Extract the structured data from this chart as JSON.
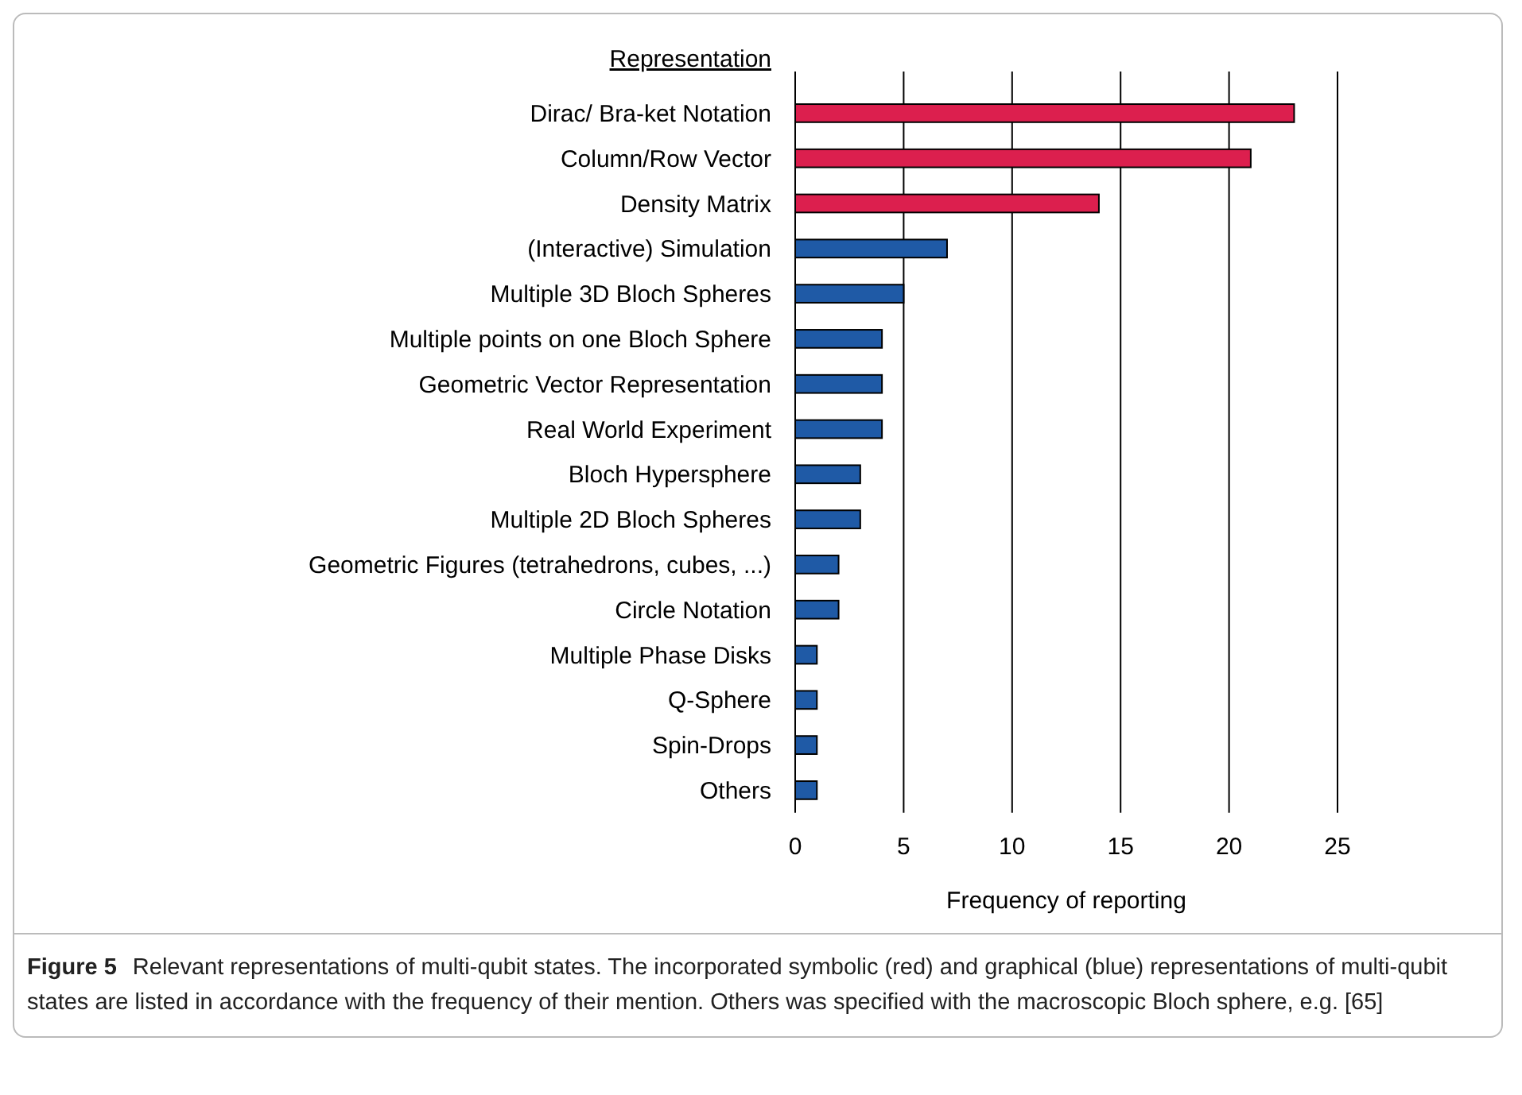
{
  "chart_data": {
    "type": "bar",
    "orientation": "horizontal",
    "ylabel": "Representation",
    "xlabel": "Frequency of reporting",
    "categories": [
      "Dirac/ Bra-ket Notation",
      "Column/Row Vector",
      "Density Matrix",
      "(Interactive) Simulation",
      "Multiple 3D Bloch Spheres",
      "Multiple points on one Bloch Sphere",
      "Geometric Vector Representation",
      "Real World Experiment",
      "Bloch Hypersphere",
      "Multiple 2D Bloch Spheres",
      "Geometric Figures (tetrahedrons, cubes, ...)",
      "Circle Notation",
      "Multiple Phase Disks",
      "Q-Sphere",
      "Spin-Drops",
      "Others"
    ],
    "values": [
      23,
      21,
      14,
      7,
      5,
      4,
      4,
      4,
      3,
      3,
      2,
      2,
      1,
      1,
      1,
      1
    ],
    "colors": [
      "#dc1f4e",
      "#dc1f4e",
      "#dc1f4e",
      "#1f5aa6",
      "#1f5aa6",
      "#1f5aa6",
      "#1f5aa6",
      "#1f5aa6",
      "#1f5aa6",
      "#1f5aa6",
      "#1f5aa6",
      "#1f5aa6",
      "#1f5aa6",
      "#1f5aa6",
      "#1f5aa6",
      "#1f5aa6"
    ],
    "xlim": [
      0,
      25
    ],
    "xticks": [
      0,
      5,
      10,
      15,
      20,
      25
    ],
    "grid": "x",
    "annotations": [
      "Figure 5",
      "Relevant representations of multi-qubit states. The incorporated symbolic (red) and graphical (blue) representations of multi-qubit states are listed in accordance with the frequency of their mention. Others was specified with the macroscopic Bloch sphere, e.g. [65]"
    ]
  }
}
